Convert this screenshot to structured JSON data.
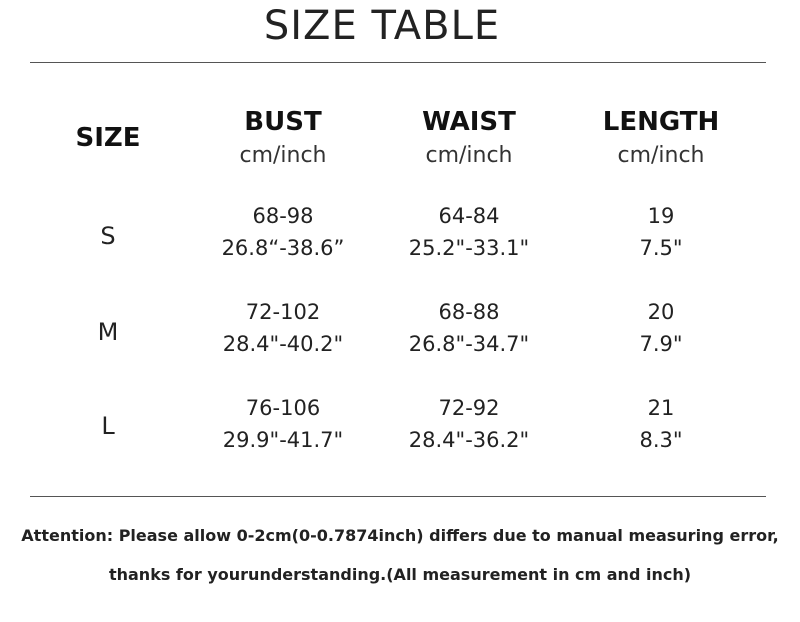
{
  "title": "SIZE TABLE",
  "table": {
    "size_header": "SIZE",
    "columns": [
      {
        "name": "BUST",
        "unit": "cm/inch"
      },
      {
        "name": "WAIST",
        "unit": "cm/inch"
      },
      {
        "name": "LENGTH",
        "unit": "cm/inch"
      }
    ],
    "rows": [
      {
        "size": "S",
        "bust": {
          "cm": "68-98",
          "inch": "26.8“-38.6”"
        },
        "waist": {
          "cm": "64-84",
          "inch": "25.2\"-33.1\""
        },
        "length": {
          "cm": "19",
          "inch": "7.5\""
        }
      },
      {
        "size": "M",
        "bust": {
          "cm": "72-102",
          "inch": "28.4\"-40.2\""
        },
        "waist": {
          "cm": "68-88",
          "inch": "26.8\"-34.7\""
        },
        "length": {
          "cm": "20",
          "inch": "7.9\""
        }
      },
      {
        "size": "L",
        "bust": {
          "cm": "76-106",
          "inch": "29.9\"-41.7\""
        },
        "waist": {
          "cm": "72-92",
          "inch": "28.4\"-36.2\""
        },
        "length": {
          "cm": "21",
          "inch": "8.3\""
        }
      }
    ]
  },
  "notes": {
    "line1": "Attention: Please allow 0-2cm(0-0.7874inch) differs due to manual measuring error,",
    "line2": "thanks for yourunderstanding.(All measurement in cm and inch)"
  }
}
